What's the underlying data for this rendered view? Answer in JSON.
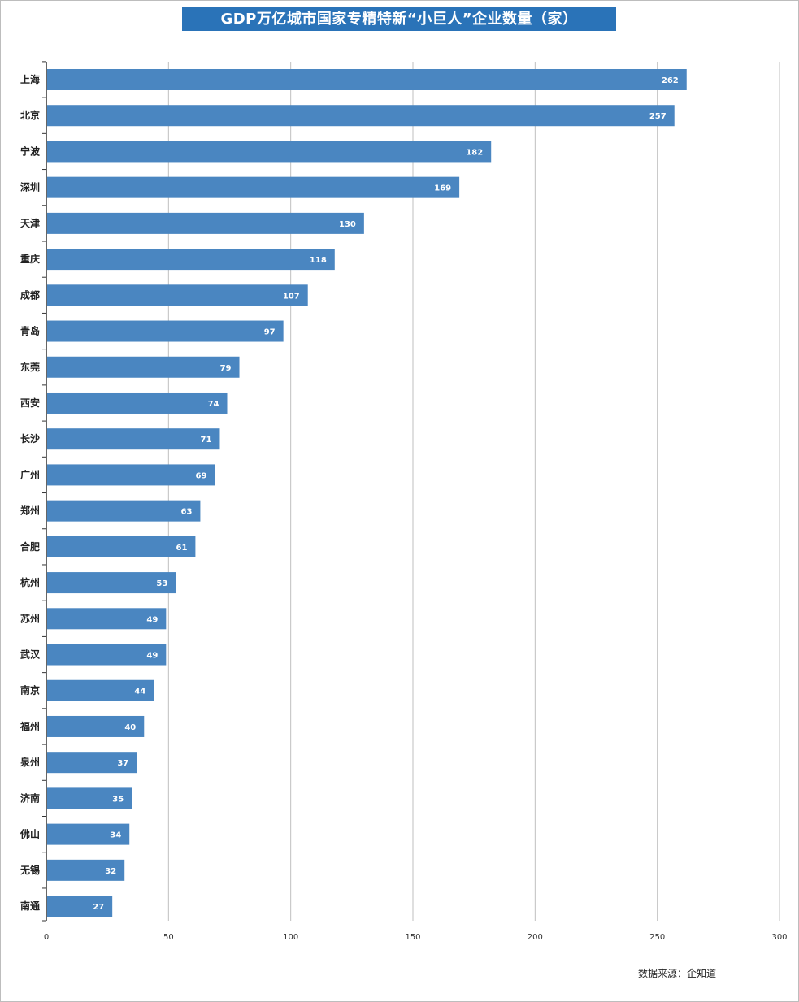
{
  "chart_data": {
    "type": "bar",
    "orientation": "horizontal",
    "title": "GDP万亿城市国家专精特新“小巨人”企业数量（家）",
    "source": "数据来源：企知道",
    "categories": [
      "上海",
      "北京",
      "宁波",
      "深圳",
      "天津",
      "重庆",
      "成都",
      "青岛",
      "东莞",
      "西安",
      "长沙",
      "广州",
      "郑州",
      "合肥",
      "杭州",
      "苏州",
      "武汉",
      "南京",
      "福州",
      "泉州",
      "济南",
      "佛山",
      "无锡",
      "南通"
    ],
    "values": [
      262,
      257,
      182,
      169,
      130,
      118,
      107,
      97,
      79,
      74,
      71,
      69,
      63,
      61,
      53,
      49,
      49,
      44,
      40,
      37,
      35,
      34,
      32,
      27
    ],
    "xlim": [
      0,
      300
    ],
    "xticks": [
      0,
      50,
      100,
      150,
      200,
      250,
      300
    ],
    "grid": true,
    "data_labels": true,
    "colors": {
      "bar": "#4a86c1",
      "title_bg": "#2a73b8",
      "grid": "#bfbfbf"
    }
  }
}
